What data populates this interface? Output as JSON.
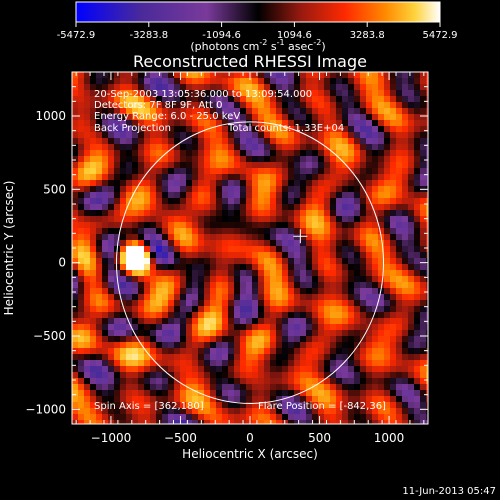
{
  "colorbar": {
    "tick_labels": [
      "-5472.9",
      "-3283.8",
      "-1094.6",
      "1094.6",
      "3283.8",
      "5472.9"
    ],
    "units_prefix": "(photons cm",
    "units_sup1": "-2",
    "units_mid": " s",
    "units_sup2": "-1",
    "units_mid2": " asec",
    "units_sup3": "-2",
    "units_suffix": ")",
    "colormap": [
      "#0000ff",
      "#4a2a9a",
      "#7a3a9a",
      "#000000",
      "#9a1a10",
      "#ff2a00",
      "#ff8a00",
      "#ffd23a",
      "#ffffff"
    ]
  },
  "title": "Reconstructed RHESSI Image",
  "annotations": {
    "time_range": "20-Sep-2003 13:05:36.000 to 13:09:54.000",
    "detectors": "Detectors: 7F 8F 9F, Att 0",
    "energy": "Energy Range: 6.0 - 25.0 keV",
    "method": "Back Projection",
    "counts": "Total counts: 1.33E+04",
    "spin_axis": "Spin Axis = [362,180]",
    "flare_position": "Flare Position = [-842,36]"
  },
  "footer_timestamp": "11-Jun-2013 05:47",
  "chart_data": {
    "type": "heatmap",
    "title": "Reconstructed RHESSI Image",
    "xlabel": "Heliocentric X (arcsec)",
    "ylabel": "Heliocentric Y (arcsec)",
    "xlim": [
      -1280,
      1280
    ],
    "ylim": [
      -1100,
      1300
    ],
    "x_ticks": [
      -1000,
      -500,
      0,
      500,
      1000
    ],
    "x_tick_labels": [
      "−1000",
      "−500",
      "0",
      "500",
      "1000"
    ],
    "y_ticks": [
      -1000,
      -500,
      0,
      500,
      1000
    ],
    "y_tick_labels": [
      "−1000",
      "−500",
      "0",
      "500",
      "1000"
    ],
    "value_range": [
      -5472.9,
      5472.9
    ],
    "solar_limb": {
      "center": [
        0,
        0
      ],
      "radius": 960
    },
    "sun_center_marker": [
      362,
      180
    ],
    "flare_position": [
      -842,
      36
    ],
    "spin_axis": [
      362,
      180
    ]
  }
}
